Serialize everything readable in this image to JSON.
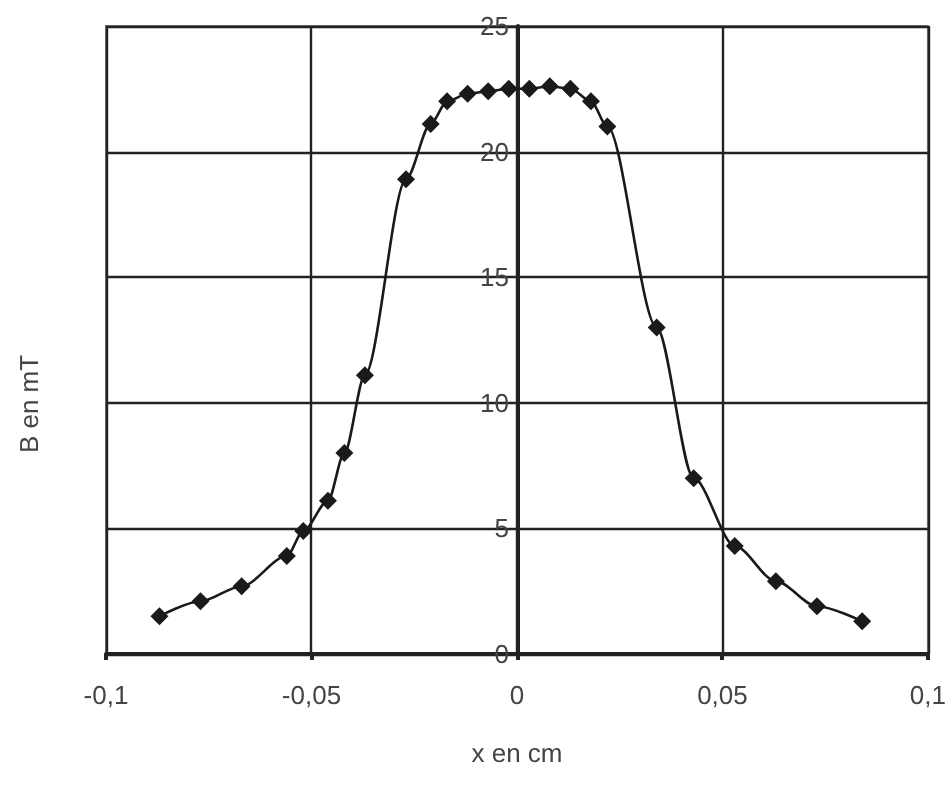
{
  "chart_data": {
    "type": "line",
    "xlabel": "x en cm",
    "ylabel": "B en mT",
    "series": [
      {
        "color": "#1a1a1a",
        "x": [
          -0.087,
          -0.077,
          -0.067,
          -0.056,
          -0.052,
          -0.046,
          -0.042,
          -0.037,
          -0.027,
          -0.021,
          -0.017,
          -0.012,
          -0.007,
          -0.002,
          0.003,
          0.008,
          0.013,
          0.018,
          0.022,
          0.034,
          0.043,
          0.053,
          0.063,
          0.073,
          0.084
        ],
        "values": [
          1.5,
          2.1,
          2.7,
          3.9,
          4.9,
          6.1,
          8.0,
          11.1,
          18.9,
          21.1,
          22.0,
          22.3,
          22.4,
          22.5,
          22.5,
          22.6,
          22.5,
          22.0,
          21.0,
          13.0,
          7.0,
          4.3,
          2.9,
          1.9,
          1.3
        ]
      }
    ],
    "xlim": [
      -0.1,
      0.1
    ],
    "xticks": [
      {
        "value": -0.1,
        "label": "-0,1"
      },
      {
        "value": -0.05,
        "label": "-0,05"
      },
      0,
      {
        "value": 0.05,
        "label": "0,05"
      },
      {
        "value": 0.1,
        "label": "0,1"
      }
    ],
    "ylim": [
      0,
      25
    ],
    "yticks": [
      0,
      5,
      10,
      15,
      20,
      25
    ],
    "grid": true,
    "marker": "diamond",
    "line_style": "solid"
  }
}
